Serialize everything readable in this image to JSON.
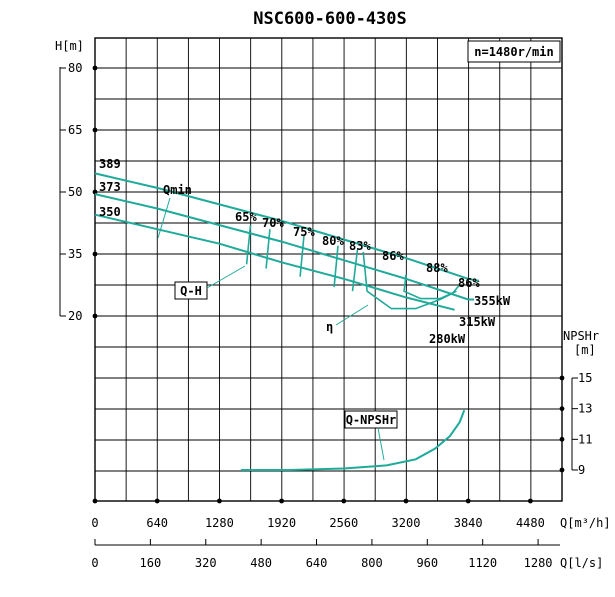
{
  "chart_data": {
    "type": "line",
    "title": "NSC600-600-430S",
    "speed_label": "n=1480r/min",
    "head_axis": {
      "label": "H[m]",
      "ticks": [
        80,
        65,
        50,
        35,
        20
      ],
      "tick_labels": [
        "80",
        "65",
        "50",
        "35",
        "20"
      ],
      "range": [
        20,
        80
      ]
    },
    "npsh_axis": {
      "label": "NPSHr",
      "unit": "[m]",
      "ticks": [
        15,
        13,
        11,
        9
      ],
      "tick_labels": [
        "15",
        "13",
        "11",
        "9"
      ],
      "range": [
        9,
        15
      ]
    },
    "flow_axis_m3h": {
      "label": "Q[m³/h]",
      "ticks": [
        0,
        640,
        1280,
        1920,
        2560,
        3200,
        3840,
        4480
      ],
      "tick_labels": [
        "0",
        "640",
        "1280",
        "1920",
        "2560",
        "3200",
        "3840",
        "4480"
      ],
      "range": [
        0,
        4800
      ]
    },
    "flow_axis_ls": {
      "label": "Q[l/s]",
      "ticks": [
        0,
        160,
        320,
        480,
        640,
        800,
        960,
        1120,
        1280
      ],
      "tick_labels": [
        "0",
        "160",
        "320",
        "480",
        "640",
        "800",
        "960",
        "1120",
        "1280"
      ]
    },
    "qh_series": [
      {
        "impeller": "389",
        "label": "389",
        "points": [
          [
            0,
            54.5
          ],
          [
            640,
            51
          ],
          [
            1280,
            47
          ],
          [
            1920,
            43
          ],
          [
            2560,
            38.5
          ],
          [
            3200,
            34
          ],
          [
            3840,
            29
          ],
          [
            3950,
            28.5
          ]
        ]
      },
      {
        "impeller": "373",
        "label": "373",
        "points": [
          [
            0,
            49.5
          ],
          [
            640,
            46
          ],
          [
            1280,
            42
          ],
          [
            1920,
            38
          ],
          [
            2560,
            33.5
          ],
          [
            3200,
            29
          ],
          [
            3840,
            24
          ],
          [
            3900,
            24
          ]
        ]
      },
      {
        "impeller": "350",
        "label": "350",
        "points": [
          [
            0,
            44.5
          ],
          [
            640,
            41
          ],
          [
            1280,
            37.5
          ],
          [
            1920,
            33
          ],
          [
            2560,
            29
          ],
          [
            3200,
            24.5
          ],
          [
            3700,
            21.5
          ]
        ]
      }
    ],
    "efficiency_contours": [
      {
        "label": "65%",
        "points": [
          [
            1600,
            42
          ],
          [
            1560,
            32.5
          ]
        ]
      },
      {
        "label": "70%",
        "points": [
          [
            1800,
            41
          ],
          [
            1760,
            31.5
          ]
        ]
      },
      {
        "label": "75%",
        "points": [
          [
            2150,
            39.5
          ],
          [
            2110,
            29.5
          ]
        ]
      },
      {
        "label": "80%",
        "points": [
          [
            2500,
            37
          ],
          [
            2460,
            27
          ]
        ]
      },
      {
        "label": "83%",
        "points": [
          [
            2700,
            36
          ],
          [
            2650,
            26
          ]
        ]
      },
      {
        "label": "86%",
        "points": [
          [
            2760,
            35.5
          ],
          [
            2800,
            26
          ],
          [
            3050,
            21.8
          ],
          [
            3300,
            21.8
          ],
          [
            3550,
            24
          ],
          [
            3680,
            25.5
          ]
        ]
      },
      {
        "label": "88%",
        "points": [
          [
            3200,
            30
          ],
          [
            3180,
            26
          ],
          [
            3350,
            24.2
          ],
          [
            3550,
            24.2
          ],
          [
            3720,
            26
          ]
        ]
      },
      {
        "label": "86%",
        "points": [
          [
            3750,
            27.5
          ],
          [
            3680,
            25.5
          ]
        ]
      }
    ],
    "power_labels": [
      "355kW",
      "315kW",
      "280kW"
    ],
    "qmin_label": "Qmin",
    "qh_curve_label": "Q-H",
    "eff_curve_label": "η",
    "npsh_series": {
      "label": "Q-NPSHr",
      "points": [
        [
          1500,
          9
        ],
        [
          2000,
          9
        ],
        [
          2560,
          9.1
        ],
        [
          3000,
          9.3
        ],
        [
          3300,
          9.7
        ],
        [
          3500,
          10.4
        ],
        [
          3650,
          11.2
        ],
        [
          3750,
          12.1
        ],
        [
          3800,
          12.9
        ]
      ]
    }
  }
}
